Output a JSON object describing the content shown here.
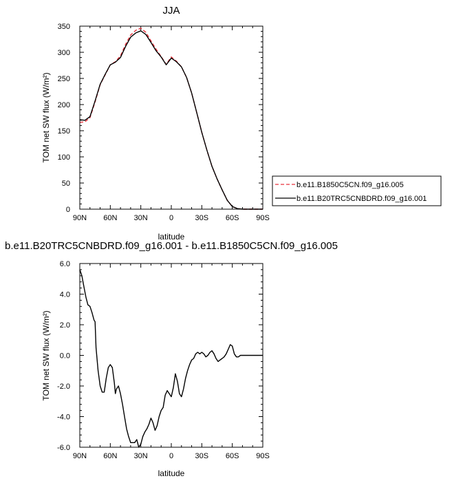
{
  "chart_data": [
    {
      "type": "line",
      "title": "JJA",
      "xlabel": "latitude",
      "ylabel": "TOM net SW flux (W/m²)",
      "xlim": [
        90,
        -90
      ],
      "ylim": [
        0,
        350
      ],
      "x_ticks": [
        "90N",
        "60N",
        "30N",
        "0",
        "30S",
        "60S",
        "90S"
      ],
      "y_ticks": [
        "0",
        "50",
        "100",
        "150",
        "200",
        "250",
        "300",
        "350"
      ],
      "grid": false,
      "legend_position": "right",
      "x": [
        90,
        85,
        80,
        75,
        70,
        65,
        60,
        55,
        50,
        45,
        40,
        35,
        30,
        25,
        20,
        15,
        10,
        5,
        0,
        -5,
        -10,
        -15,
        -20,
        -25,
        -30,
        -35,
        -40,
        -45,
        -50,
        -55,
        -60,
        -65,
        -70,
        -75,
        -80,
        -85,
        -90
      ],
      "series": [
        {
          "name": "b.e11.B1850C5CN.f09_g16.005",
          "color": "#e8303a",
          "dash": "dashed",
          "values": [
            166,
            167,
            175,
            205,
            238,
            257,
            276,
            282,
            293,
            315,
            333,
            342,
            346,
            338,
            322,
            306,
            292,
            277,
            291,
            283,
            272,
            252,
            222,
            185,
            147,
            113,
            82,
            58,
            37,
            17,
            5,
            1,
            0,
            0,
            0,
            0,
            0
          ]
        },
        {
          "name": "b.e11.B20TRC5CNBDRD.f09_g16.001",
          "color": "#000000",
          "dash": "solid",
          "values": [
            171,
            170,
            177,
            207,
            239,
            258,
            276,
            281,
            290,
            311,
            329,
            337,
            341,
            334,
            319,
            303,
            291,
            276,
            289,
            282,
            272,
            252,
            222,
            185,
            147,
            113,
            82,
            58,
            37,
            17,
            5,
            1,
            0,
            0,
            0,
            0,
            0
          ]
        }
      ]
    },
    {
      "type": "line",
      "title": "b.e11.B20TRC5CNBDRD.f09_g16.001 - b.e11.B1850C5CN.f09_g16.005",
      "xlabel": "latitude",
      "ylabel": "TOM net SW flux (W/m²)",
      "xlim": [
        90,
        -90
      ],
      "ylim": [
        -6,
        6
      ],
      "x_ticks": [
        "90N",
        "60N",
        "30N",
        "0",
        "30S",
        "60S",
        "90S"
      ],
      "y_ticks": [
        "-6.0",
        "-4.0",
        "-2.0",
        "0.0",
        "2.0",
        "4.0",
        "6.0"
      ],
      "grid": false,
      "series": [
        {
          "name": "",
          "color": "#000000",
          "dash": "solid",
          "x": [
            90,
            88,
            86,
            84,
            82,
            80,
            78,
            76,
            75,
            74,
            72,
            70,
            68,
            66,
            64,
            62,
            60,
            58,
            56,
            55,
            54,
            52,
            50,
            48,
            46,
            44,
            42,
            40,
            38,
            36,
            34,
            32,
            30,
            28,
            26,
            24,
            22,
            20,
            18,
            16,
            14,
            12,
            10,
            8,
            6,
            4,
            2,
            0,
            -2,
            -4,
            -6,
            -8,
            -10,
            -12,
            -14,
            -16,
            -18,
            -20,
            -22,
            -24,
            -26,
            -28,
            -30,
            -32,
            -34,
            -36,
            -38,
            -40,
            -42,
            -44,
            -46,
            -48,
            -50,
            -52,
            -54,
            -56,
            -58,
            -60,
            -62,
            -64,
            -66,
            -68,
            -70,
            -75,
            -80,
            -85,
            -90
          ],
          "values": [
            5.6,
            5.2,
            4.5,
            3.8,
            3.3,
            3.2,
            2.8,
            2.3,
            2.2,
            0.5,
            -1.0,
            -2.0,
            -2.4,
            -2.4,
            -1.5,
            -0.8,
            -0.6,
            -0.8,
            -1.8,
            -2.5,
            -2.2,
            -2.0,
            -2.5,
            -3.2,
            -4.0,
            -4.8,
            -5.3,
            -5.7,
            -5.7,
            -5.7,
            -5.5,
            -6.0,
            -5.8,
            -5.3,
            -5.0,
            -4.8,
            -4.5,
            -4.1,
            -4.4,
            -4.9,
            -4.6,
            -4.0,
            -3.6,
            -3.4,
            -2.6,
            -2.3,
            -2.5,
            -2.7,
            -2.1,
            -1.2,
            -1.7,
            -2.5,
            -2.7,
            -2.2,
            -1.5,
            -1.0,
            -0.6,
            -0.3,
            -0.2,
            0.1,
            0.2,
            0.1,
            0.2,
            0.1,
            -0.1,
            0.0,
            0.2,
            0.3,
            0.1,
            -0.2,
            -0.4,
            -0.3,
            -0.2,
            -0.1,
            0.1,
            0.4,
            0.7,
            0.6,
            0.1,
            -0.1,
            -0.1,
            0.0,
            0.0,
            0.0,
            0.0,
            0.0,
            0.0
          ]
        }
      ]
    }
  ]
}
